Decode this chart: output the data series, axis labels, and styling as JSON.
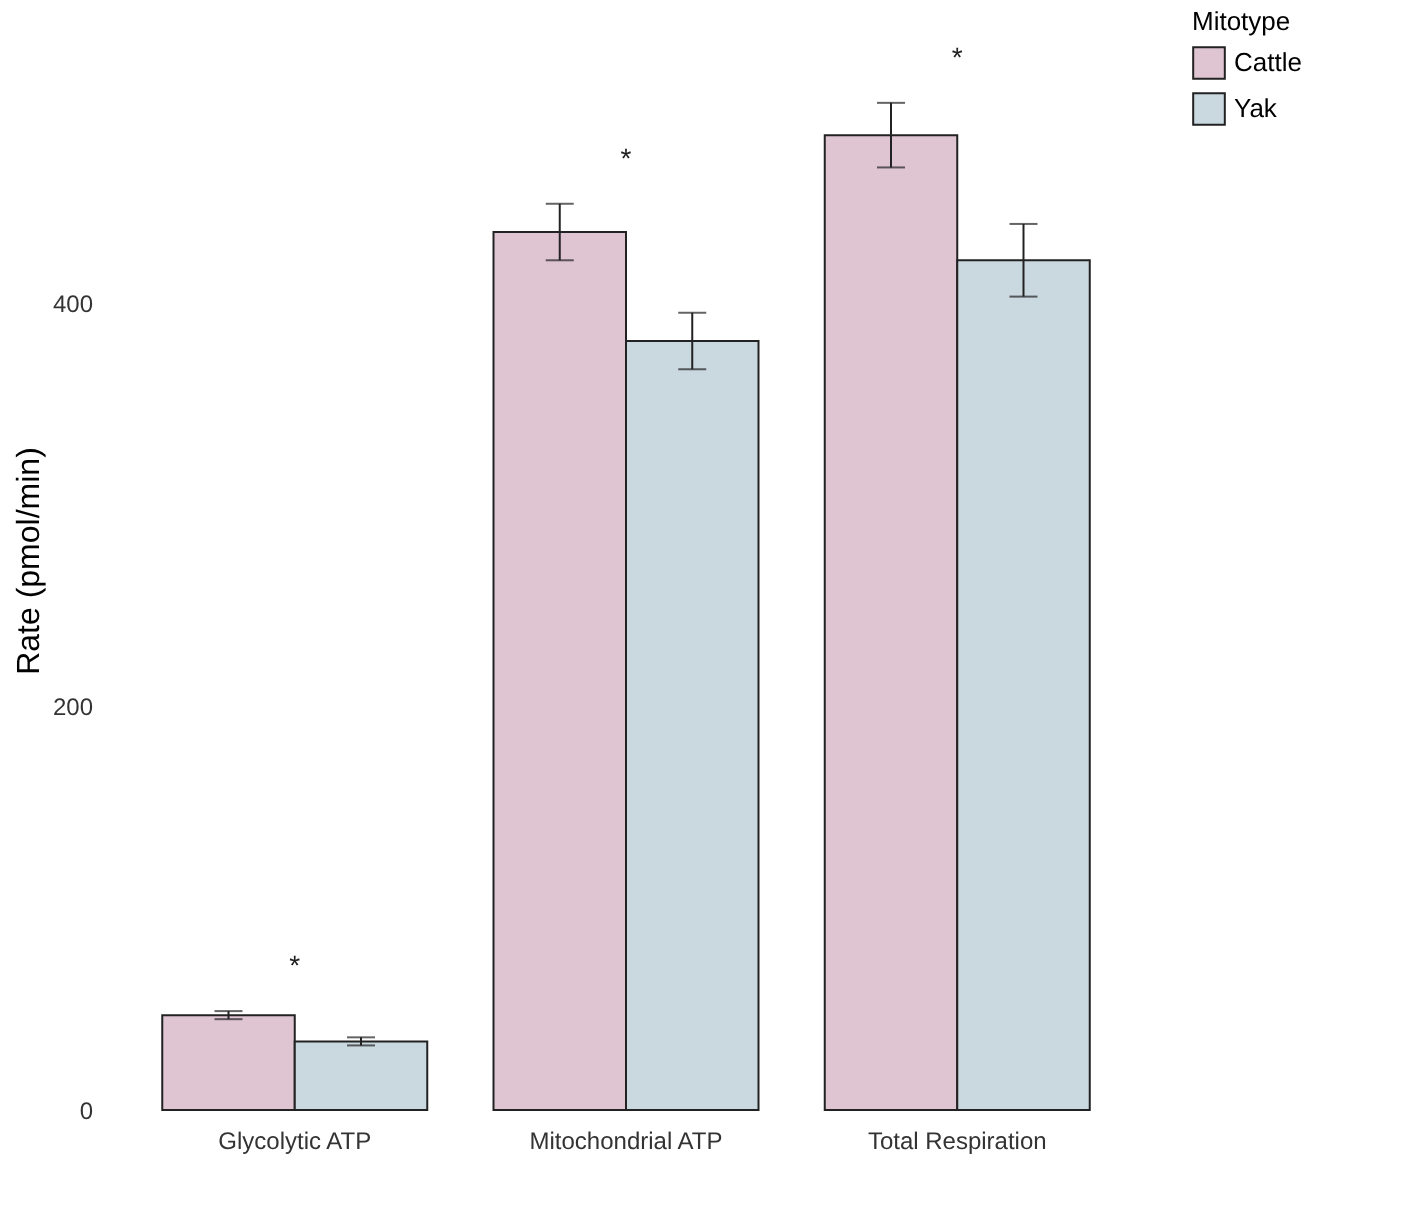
{
  "chart_data": {
    "type": "bar",
    "ylabel": "Rate (pmol/min)",
    "legend_title": "Mitotype",
    "categories": [
      "Glycolytic ATP",
      "Mitochondrial ATP",
      "Total Respiration"
    ],
    "series": [
      {
        "name": "Cattle",
        "color": "#dfc5d2",
        "values": [
          47,
          435,
          483
        ],
        "errors": [
          2,
          14,
          16
        ]
      },
      {
        "name": "Yak",
        "color": "#cad8e0",
        "values": [
          34,
          381,
          421
        ],
        "errors": [
          2,
          14,
          18
        ]
      }
    ],
    "ylim": [
      0,
      545
    ],
    "yticks": [
      0,
      200,
      400
    ],
    "grid": false,
    "legend": "right",
    "annotations": [
      "*",
      "*",
      "*"
    ]
  }
}
